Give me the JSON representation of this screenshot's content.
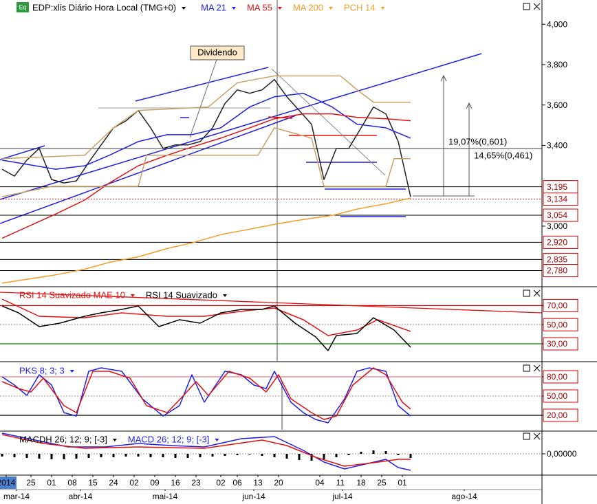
{
  "chart_data": [
    {
      "type": "line",
      "title": "EDP:xlis Diário Hora Local (TMG+0)",
      "header_icon": "Eq",
      "xlim": [
        -0.5,
        130.83
      ],
      "ylim": [
        2.7,
        4.12
      ],
      "yticks": [
        {
          "value": 4.0,
          "label": "4,000"
        },
        {
          "value": 3.8,
          "label": "3,800"
        },
        {
          "value": 3.6,
          "label": "3,600"
        },
        {
          "value": 3.4,
          "label": "3,400"
        },
        {
          "value": 3.0,
          "label": "3,000"
        }
      ],
      "price_levels": [
        {
          "value": 3.134,
          "label": "3,134",
          "color": "#d62020",
          "dashed": true
        },
        {
          "value": 3.195,
          "label": "3,195",
          "color": "#000000",
          "dashed": false
        },
        {
          "value": 3.054,
          "label": "3,054",
          "color": "#000000",
          "dashed": false
        },
        {
          "value": 2.92,
          "label": "2,920",
          "color": "#000000",
          "dashed": false
        },
        {
          "value": 2.835,
          "label": "2,835",
          "color": "#000000",
          "dashed": false
        },
        {
          "value": 2.78,
          "label": "2,780",
          "color": "#000000",
          "dashed": false
        }
      ],
      "annotations": [
        "Dividendo",
        "19,07%(0,601)",
        "14,65%(0,461)"
      ],
      "series": [
        {
          "color": "#202020",
          "x": [
            0,
            3,
            6,
            9,
            12,
            15,
            18,
            21,
            24,
            27,
            30,
            33,
            36,
            39,
            42,
            45,
            48,
            51,
            54,
            57,
            60,
            63,
            66,
            69,
            72,
            75,
            78,
            81,
            84,
            87,
            90,
            93,
            96,
            99
          ],
          "values": [
            3.282,
            3.248,
            3.327,
            3.385,
            3.231,
            3.214,
            3.224,
            3.316,
            3.402,
            3.487,
            3.521,
            3.573,
            3.487,
            3.385,
            3.402,
            3.402,
            3.419,
            3.487,
            3.607,
            3.675,
            3.658,
            3.675,
            3.726,
            3.641,
            3.573,
            3.504,
            3.231,
            3.385,
            3.385,
            3.487,
            3.59,
            3.556,
            3.419,
            3.145
          ]
        },
        {
          "name": "MA 21",
          "color": "#1e1ee6",
          "x": [
            0,
            13,
            20,
            26,
            33,
            40,
            46,
            53,
            60,
            66,
            73,
            80,
            86,
            93,
            99
          ],
          "values": [
            3.327,
            3.282,
            3.299,
            3.351,
            3.419,
            3.453,
            3.453,
            3.487,
            3.59,
            3.641,
            3.658,
            3.59,
            3.505,
            3.487,
            3.436
          ]
        },
        {
          "name": "MA 55",
          "color": "#e01010",
          "x": [
            0,
            13,
            20,
            26,
            33,
            40,
            46,
            53,
            60,
            66,
            73,
            80,
            86,
            93,
            99
          ],
          "values": [
            2.94,
            3.06,
            3.129,
            3.214,
            3.299,
            3.351,
            3.392,
            3.436,
            3.487,
            3.532,
            3.556,
            3.556,
            3.539,
            3.532,
            3.522
          ]
        },
        {
          "name": "MA 200",
          "color": "#f59a23",
          "x": [
            0,
            13,
            20,
            26,
            33,
            40,
            46,
            53,
            60,
            66,
            73,
            80,
            86,
            93,
            99
          ],
          "values": [
            2.718,
            2.759,
            2.787,
            2.821,
            2.848,
            2.889,
            2.917,
            2.958,
            2.985,
            3.009,
            3.033,
            3.053,
            3.084,
            3.111,
            3.139
          ]
        },
        {
          "name": "PCH 14",
          "color": "#c8a064",
          "legend_color": "#f0a030",
          "x": [
            0,
            20,
            27,
            33,
            50,
            57,
            66,
            82,
            86,
            90,
            99
          ],
          "values": [
            3.334,
            3.351,
            3.487,
            3.573,
            3.59,
            3.71,
            3.744,
            3.744,
            3.676,
            3.614,
            3.614
          ]
        },
        {
          "color": "#c8a064",
          "x": [
            0,
            12,
            33,
            35,
            62,
            66,
            75,
            78,
            93,
            95,
            99
          ],
          "values": [
            3.146,
            3.197,
            3.197,
            3.351,
            3.351,
            3.487,
            3.436,
            3.197,
            3.197,
            3.334,
            3.334
          ]
        }
      ]
    },
    {
      "type": "line",
      "xlim": [
        -0.5,
        130.83
      ],
      "ylim": [
        12,
        89
      ],
      "tick_box": true,
      "yticks": [
        {
          "value": 70,
          "label": "70,00"
        },
        {
          "value": 50,
          "label": "50,00"
        },
        {
          "value": 30,
          "label": "30,00"
        }
      ],
      "level_colors": [
        "#e00000",
        "#aaaaaa",
        "#008000"
      ],
      "level_dash": [
        false,
        true,
        false
      ],
      "series": [
        {
          "name": "RSI 14 Suavizado MAE 10",
          "color": "#e01010",
          "x": [
            0,
            9,
            20,
            29,
            40,
            49,
            59,
            66,
            73,
            79,
            86,
            91,
            99
          ],
          "values": [
            76.8,
            58.8,
            57.3,
            62.4,
            58.8,
            58.8,
            64.5,
            67.4,
            55.2,
            38.6,
            44.4,
            55.2,
            43.0
          ]
        },
        {
          "name": "RSI 14 Suavizado",
          "color": "#000000",
          "x": [
            0,
            4,
            9,
            14,
            20,
            24,
            29,
            33,
            38,
            43,
            48,
            53,
            58,
            63,
            66,
            71,
            76,
            79,
            81,
            86,
            90,
            95,
            99
          ],
          "values": [
            69.6,
            62.4,
            48.0,
            51.6,
            58.8,
            62.4,
            66.0,
            69.6,
            48.0,
            55.2,
            51.6,
            62.4,
            66.0,
            66.0,
            69.6,
            51.6,
            37.2,
            22.8,
            38.6,
            40.8,
            57.3,
            44.4,
            26.4
          ]
        }
      ]
    },
    {
      "type": "line",
      "xlim": [
        -0.5,
        130.83
      ],
      "ylim": [
        -2.5,
        101.4
      ],
      "tick_box": true,
      "yticks": [
        {
          "value": 80,
          "label": "80,00"
        },
        {
          "value": 50,
          "label": "50,00"
        },
        {
          "value": 20,
          "label": "20,00"
        }
      ],
      "level_colors": [
        "#e08080",
        "#aaaaaa",
        "#000000"
      ],
      "level_dash": [
        false,
        true,
        false
      ],
      "series": [
        {
          "name": "PKS 8; 3; 3",
          "color": "#1e1ee6",
          "x": [
            0,
            3,
            6,
            9,
            12,
            15,
            18,
            21,
            24,
            29,
            34,
            39,
            43,
            46,
            49,
            54,
            58,
            61,
            64,
            66,
            70,
            73,
            76,
            79,
            83,
            86,
            89,
            93,
            96,
            99
          ],
          "values": [
            80.0,
            67.1,
            51.0,
            83.2,
            67.1,
            24.2,
            18.8,
            88.5,
            93.9,
            88.5,
            45.7,
            18.8,
            35.0,
            83.2,
            40.3,
            88.5,
            83.2,
            67.1,
            61.7,
            88.5,
            40.3,
            24.2,
            13.5,
            8.2,
            45.7,
            88.5,
            93.9,
            88.5,
            35.0,
            18.8
          ]
        },
        {
          "color": "#e01010",
          "x": [
            0,
            4,
            7,
            10,
            15,
            18,
            22,
            26,
            31,
            35,
            40,
            44,
            47,
            50,
            55,
            60,
            64,
            67,
            70,
            75,
            78,
            81,
            85,
            90,
            93,
            97,
            99
          ],
          "values": [
            72.5,
            61.7,
            56.4,
            77.8,
            35.0,
            24.2,
            88.5,
            88.5,
            77.8,
            35.0,
            24.2,
            51.0,
            72.5,
            51.0,
            88.5,
            77.8,
            56.4,
            83.2,
            45.7,
            24.2,
            13.5,
            18.8,
            67.1,
            93.9,
            83.2,
            40.3,
            29.6
          ]
        }
      ]
    },
    {
      "type": "line",
      "xlim": [
        -0.5,
        130.83
      ],
      "ylim": [
        -0.03,
        0.032
      ],
      "yticks": [
        {
          "value": 0,
          "label": "0,00000"
        }
      ],
      "level_colors": [
        "#aaaaaa"
      ],
      "level_dash": [
        true
      ],
      "xticks": [
        {
          "value": 1,
          "label": "2014"
        },
        {
          "value": 7,
          "label": "25"
        },
        {
          "value": 12,
          "label": "01"
        },
        {
          "value": 17,
          "label": "08"
        },
        {
          "value": 22,
          "label": "15"
        },
        {
          "value": 27,
          "label": "24"
        },
        {
          "value": 32,
          "label": "02"
        },
        {
          "value": 37,
          "label": "09"
        },
        {
          "value": 42,
          "label": "16"
        },
        {
          "value": 47,
          "label": "23"
        },
        {
          "value": 53,
          "label": "02"
        },
        {
          "value": 57,
          "label": "06"
        },
        {
          "value": 62,
          "label": "13"
        },
        {
          "value": 67,
          "label": "20"
        },
        {
          "value": 77,
          "label": "04"
        },
        {
          "value": 82,
          "label": "11"
        },
        {
          "value": 87,
          "label": "18"
        },
        {
          "value": 92,
          "label": "25"
        },
        {
          "value": 97,
          "label": "01"
        }
      ],
      "month_ticks": [
        {
          "value": 3.5,
          "label": "mar-14"
        },
        {
          "value": 19,
          "label": "abr-14"
        },
        {
          "value": 39.5,
          "label": "mai-14"
        },
        {
          "value": 61,
          "label": "jun-14"
        },
        {
          "value": 82.5,
          "label": "jul-14"
        },
        {
          "value": 112,
          "label": "ago-14"
        }
      ],
      "series": [
        {
          "name": "MACDH 26; 12; 9; [-3]",
          "type": "bar",
          "color": "#000000",
          "x": [
            0,
            3,
            6,
            9,
            12,
            15,
            18,
            21,
            24,
            27,
            30,
            33,
            36,
            39,
            42,
            45,
            48,
            51,
            54,
            57,
            60,
            63,
            66,
            69,
            72,
            75,
            78,
            81,
            84,
            87,
            90,
            93,
            96,
            99
          ],
          "values": [
            -0.004,
            -0.005,
            -0.006,
            -0.007,
            -0.008,
            -0.008,
            -0.007,
            -0.006,
            -0.005,
            -0.005,
            -0.004,
            -0.004,
            -0.005,
            -0.005,
            -0.006,
            -0.006,
            -0.005,
            -0.004,
            -0.003,
            -0.002,
            -0.001,
            -0.003,
            -0.005,
            -0.007,
            -0.009,
            -0.01,
            -0.008,
            -0.005,
            -0.002,
            0.003,
            0.005,
            0.004,
            -0.002,
            -0.006
          ]
        },
        {
          "name": "MACD 26; 12; 9; [-3]",
          "color": "#1e1ee6",
          "x": [
            0,
            8,
            16,
            25,
            33,
            41,
            49,
            58,
            66,
            73,
            78,
            83,
            88,
            93,
            96,
            99
          ],
          "values": [
            0.03,
            0.02,
            0.01,
            0.01,
            0.015,
            0.012,
            0.01,
            0.022,
            0.025,
            0.005,
            -0.012,
            -0.022,
            -0.015,
            -0.008,
            -0.02,
            -0.024
          ]
        },
        {
          "color": "#e01010",
          "x": [
            0,
            10,
            20,
            33,
            49,
            63,
            69,
            76,
            83,
            90,
            96,
            99
          ],
          "values": [
            0.028,
            0.015,
            0.008,
            0.01,
            0.008,
            0.02,
            0.012,
            -0.005,
            -0.018,
            -0.013,
            -0.008,
            -0.008
          ]
        }
      ]
    }
  ]
}
